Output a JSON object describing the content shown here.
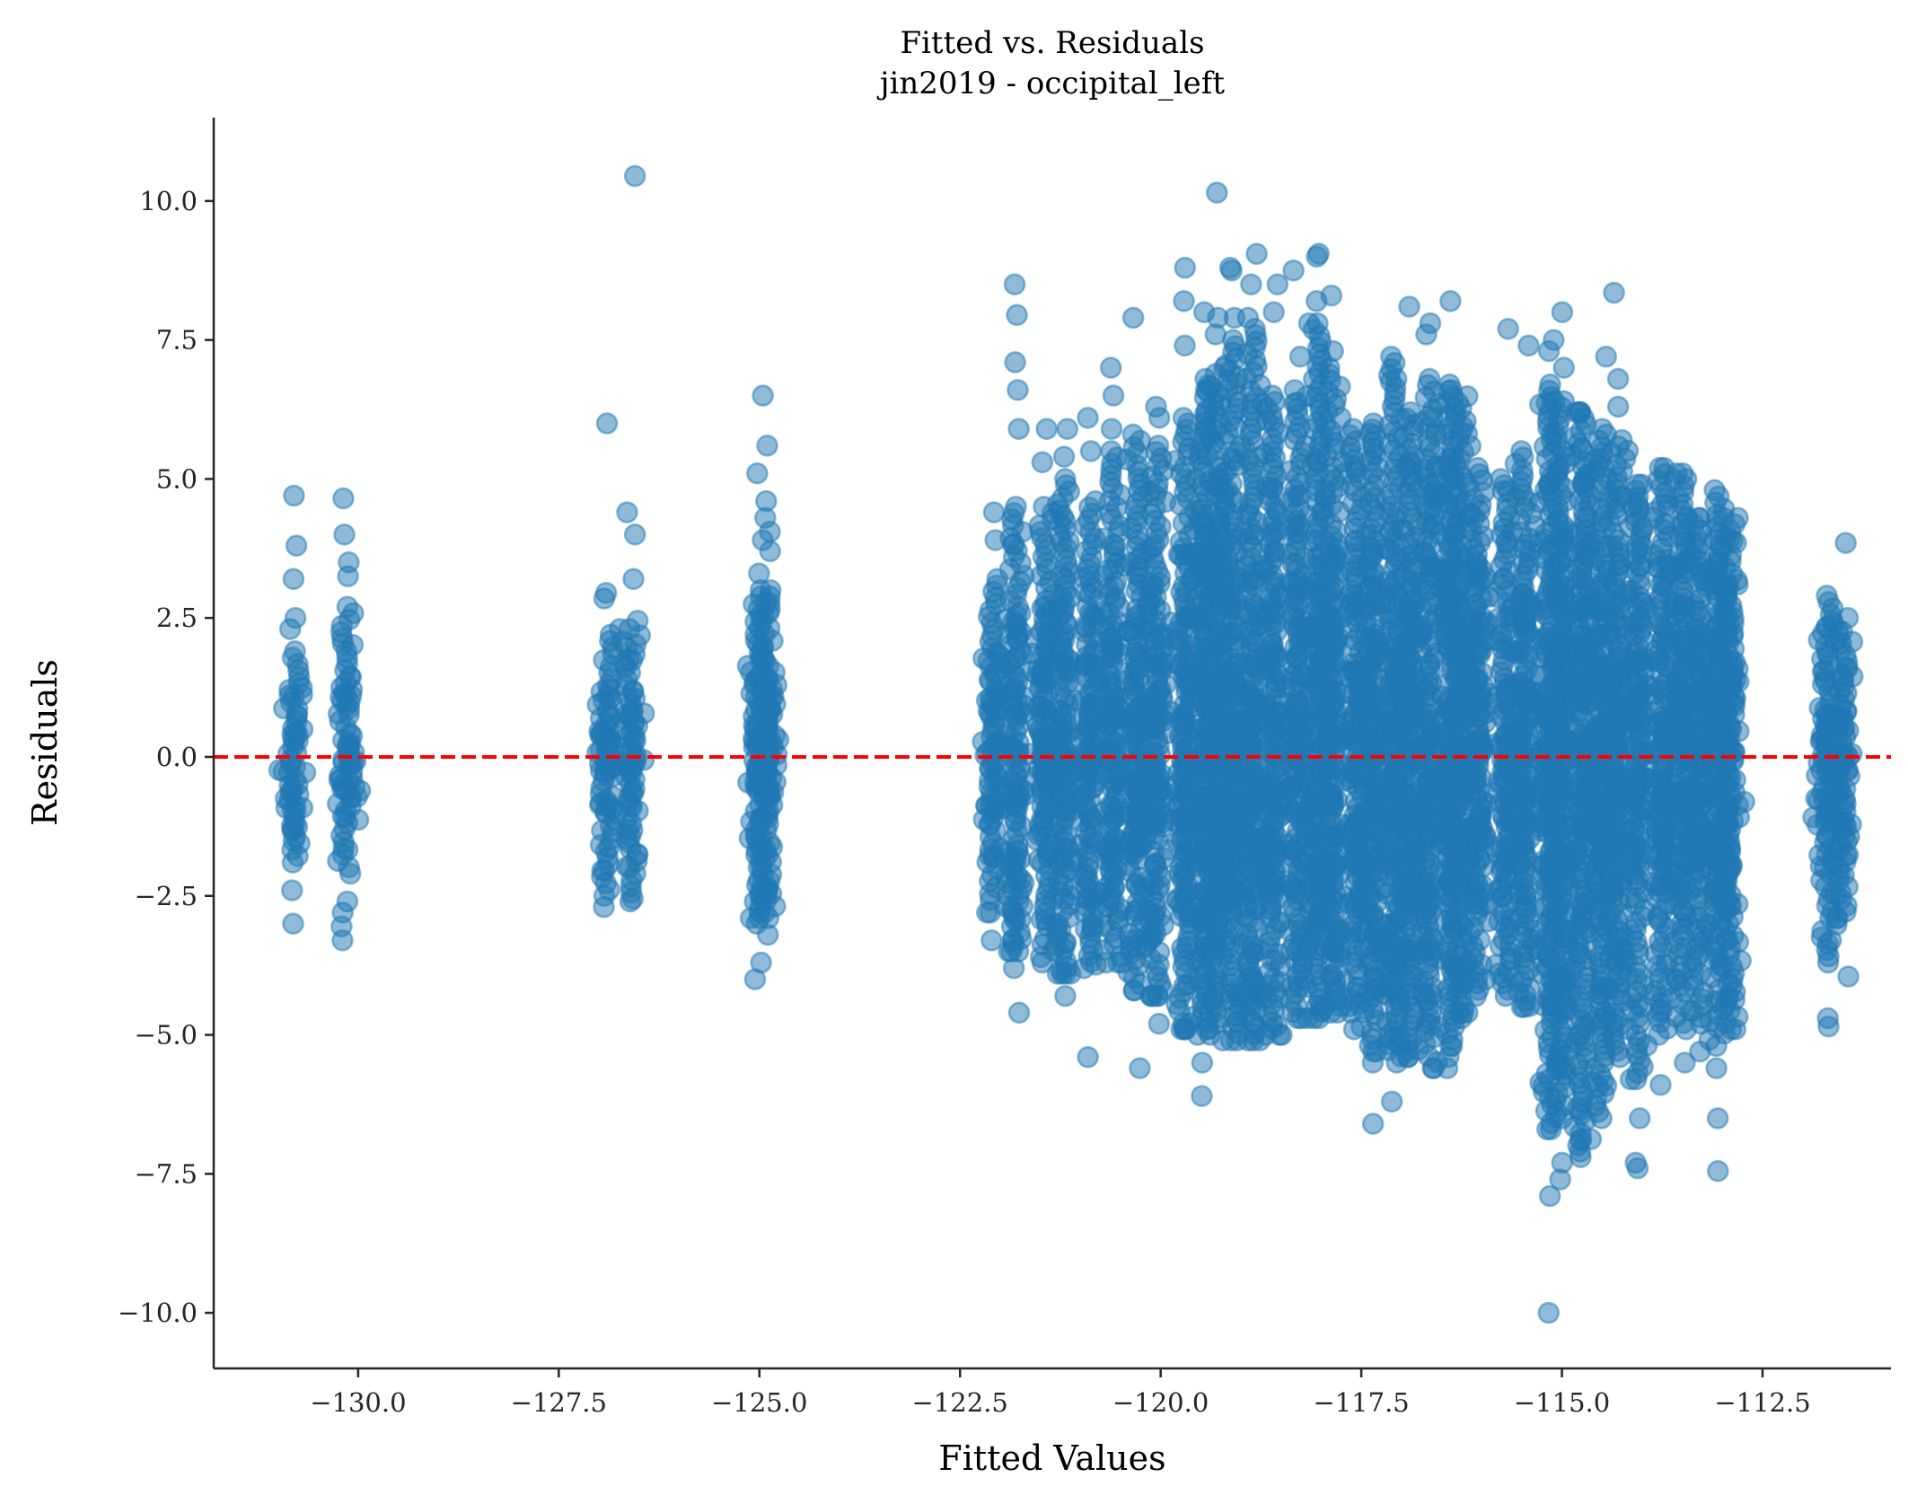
{
  "chart_data": {
    "type": "scatter",
    "title": "Fitted vs. Residuals",
    "subtitle": "jin2019 - occipital_left",
    "xlabel": "Fitted Values",
    "ylabel": "Residuals",
    "xlim": [
      -131.8,
      -110.9
    ],
    "ylim": [
      -11.0,
      11.5
    ],
    "xticks": [
      -130.0,
      -127.5,
      -125.0,
      -122.5,
      -120.0,
      -117.5,
      -115.0,
      -112.5
    ],
    "xtick_labels": [
      "−130.0",
      "−127.5",
      "−125.0",
      "−122.5",
      "−120.0",
      "−117.5",
      "−115.0",
      "−112.5"
    ],
    "yticks": [
      -10.0,
      -7.5,
      -5.0,
      -2.5,
      0.0,
      2.5,
      5.0,
      7.5,
      10.0
    ],
    "ytick_labels": [
      "−10.0",
      "−7.5",
      "−5.0",
      "−2.5",
      "0.0",
      "2.5",
      "5.0",
      "7.5",
      "10.0"
    ],
    "grid": false,
    "point_color": "#1f77b4",
    "point_alpha": 0.5,
    "reference_line": {
      "y": 0.0,
      "color": "#ff0000",
      "style": "dashed"
    },
    "clusters": [
      {
        "x": -130.8,
        "core": [
          -1.9,
          1.9
        ],
        "outliers": [
          4.7,
          3.8,
          3.2,
          2.5,
          2.3,
          -2.4,
          -3.0
        ]
      },
      {
        "x": -130.15,
        "core": [
          -2.1,
          2.7
        ],
        "outliers": [
          4.65,
          4.0,
          3.5,
          3.25,
          -2.6,
          -2.8,
          -3.05,
          -3.3
        ]
      },
      {
        "x": -126.9,
        "core": [
          -2.5,
          2.2
        ],
        "outliers": [
          6.0,
          2.95,
          2.85,
          -2.7
        ]
      },
      {
        "x": -126.6,
        "core": [
          -2.55,
          2.3
        ],
        "outliers": [
          10.45,
          4.4,
          4.0,
          3.2,
          2.45,
          -2.6
        ]
      },
      {
        "x": -125.0,
        "core": [
          -2.9,
          3.0
        ],
        "outliers": [
          6.5,
          5.1,
          3.9,
          3.3,
          -3.0,
          -3.7,
          -4.0
        ]
      },
      {
        "x": -124.9,
        "core": [
          -2.8,
          3.0
        ],
        "outliers": [
          5.6,
          4.6,
          4.3,
          4.05,
          3.7,
          -3.2
        ]
      },
      {
        "x": -122.1,
        "core": [
          -2.8,
          3.2
        ],
        "outliers": [
          4.4,
          3.9,
          -3.3
        ]
      },
      {
        "x": -121.8,
        "core": [
          -3.5,
          4.5
        ],
        "outliers": [
          8.5,
          7.95,
          7.1,
          6.6,
          5.9,
          -3.8,
          -4.6
        ]
      },
      {
        "x": -121.45,
        "core": [
          -3.6,
          4.5
        ],
        "outliers": [
          5.9,
          5.3,
          -3.7
        ]
      },
      {
        "x": -121.2,
        "core": [
          -3.9,
          5.0
        ],
        "outliers": [
          5.9,
          5.4,
          -4.3
        ]
      },
      {
        "x": -120.9,
        "core": [
          -3.8,
          4.6
        ],
        "outliers": [
          6.1,
          5.5,
          -5.4
        ]
      },
      {
        "x": -120.6,
        "core": [
          -3.7,
          5.5
        ],
        "outliers": [
          7.0,
          6.5,
          5.9
        ]
      },
      {
        "x": -120.3,
        "core": [
          -4.2,
          5.8
        ],
        "outliers": [
          7.9,
          -5.6
        ]
      },
      {
        "x": -120.05,
        "core": [
          -4.3,
          5.6
        ],
        "outliers": [
          6.3,
          6.1,
          -4.8
        ]
      },
      {
        "x": -119.7,
        "core": [
          -4.9,
          6.0
        ],
        "outliers": [
          8.8,
          8.2,
          7.4,
          6.1,
          -4.8
        ]
      },
      {
        "x": -119.45,
        "core": [
          -5.0,
          6.8
        ],
        "outliers": [
          8.0,
          6.6,
          -5.5,
          -6.1
        ]
      },
      {
        "x": -119.3,
        "core": [
          -4.8,
          7.0
        ],
        "outliers": [
          10.15,
          7.6,
          7.9
        ]
      },
      {
        "x": -119.1,
        "core": [
          -5.1,
          7.5
        ],
        "outliers": [
          8.8,
          8.75,
          7.9
        ]
      },
      {
        "x": -118.85,
        "core": [
          -5.1,
          7.7
        ],
        "outliers": [
          9.05,
          8.5,
          7.9
        ]
      },
      {
        "x": -118.6,
        "core": [
          -5.0,
          6.5
        ],
        "outliers": [
          8.5,
          8.0
        ]
      },
      {
        "x": -118.3,
        "core": [
          -4.7,
          6.6
        ],
        "outliers": [
          8.75,
          7.2
        ]
      },
      {
        "x": -118.05,
        "core": [
          -4.7,
          7.8
        ],
        "outliers": [
          9.05,
          9.0,
          8.2
        ]
      },
      {
        "x": -117.85,
        "core": [
          -4.6,
          7.0
        ],
        "outliers": [
          8.3,
          7.3
        ]
      },
      {
        "x": -117.55,
        "core": [
          -4.6,
          5.9
        ],
        "outliers": [
          -4.9
        ]
      },
      {
        "x": -117.35,
        "core": [
          -5.3,
          6.0
        ],
        "outliers": [
          -6.6,
          -5.5
        ]
      },
      {
        "x": -117.1,
        "core": [
          -5.5,
          7.2
        ],
        "outliers": [
          -6.2,
          6.8
        ]
      },
      {
        "x": -116.9,
        "core": [
          -5.4,
          6.2
        ],
        "outliers": [
          8.1
        ]
      },
      {
        "x": -116.65,
        "core": [
          -5.6,
          6.8
        ],
        "outliers": [
          7.8,
          7.6
        ]
      },
      {
        "x": -116.4,
        "core": [
          -5.2,
          6.7
        ],
        "outliers": [
          8.2,
          -5.4
        ]
      },
      {
        "x": -116.25,
        "core": [
          -4.6,
          6.6
        ],
        "outliers": [
          -4.7
        ]
      },
      {
        "x": -116.05,
        "core": [
          -4.3,
          5.2
        ],
        "outliers": []
      },
      {
        "x": -115.7,
        "core": [
          -4.3,
          5.0
        ],
        "outliers": [
          7.7
        ]
      },
      {
        "x": -115.45,
        "core": [
          -4.5,
          5.5
        ],
        "outliers": [
          7.4
        ]
      },
      {
        "x": -115.15,
        "core": [
          -6.7,
          6.7
        ],
        "outliers": [
          7.5,
          7.3,
          -10.0,
          -7.9
        ]
      },
      {
        "x": -115.0,
        "core": [
          -6.5,
          6.4
        ],
        "outliers": [
          7.0,
          8.0,
          -7.6,
          -7.3
        ]
      },
      {
        "x": -114.75,
        "core": [
          -7.1,
          6.2
        ],
        "outliers": [
          -6.9,
          -7.2
        ]
      },
      {
        "x": -114.5,
        "core": [
          -6.5,
          5.8
        ],
        "outliers": [
          7.2,
          5.9
        ]
      },
      {
        "x": -114.3,
        "core": [
          -5.4,
          5.7
        ],
        "outliers": [
          8.35,
          6.8,
          6.3
        ]
      },
      {
        "x": -114.05,
        "core": [
          -5.8,
          4.9
        ],
        "outliers": [
          -6.5,
          -7.4,
          -7.3
        ]
      },
      {
        "x": -113.75,
        "core": [
          -5.0,
          5.2
        ],
        "outliers": [
          -5.9
        ]
      },
      {
        "x": -113.5,
        "core": [
          -4.9,
          5.1
        ],
        "outliers": [
          -5.5
        ]
      },
      {
        "x": -113.3,
        "core": [
          -4.8,
          4.3
        ],
        "outliers": [
          -5.3
        ]
      },
      {
        "x": -113.05,
        "core": [
          -5.2,
          4.8
        ],
        "outliers": [
          -6.5,
          -7.45,
          -5.6
        ]
      },
      {
        "x": -112.9,
        "core": [
          -4.9,
          4.3
        ],
        "outliers": []
      },
      {
        "x": -111.7,
        "core": [
          -3.7,
          2.9
        ],
        "outliers": [
          -4.7,
          -4.85,
          -3.3
        ]
      },
      {
        "x": -111.5,
        "core": [
          -2.9,
          2.5
        ],
        "outliers": [
          3.85,
          -3.95
        ]
      }
    ]
  }
}
